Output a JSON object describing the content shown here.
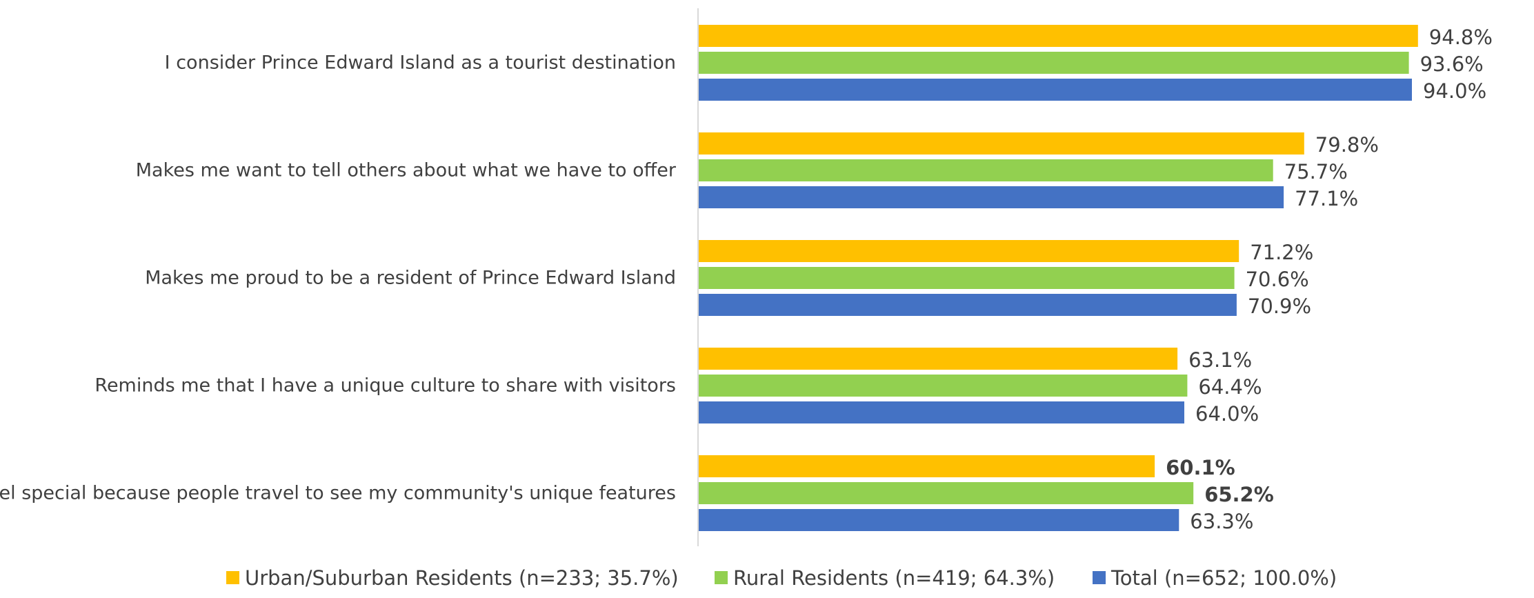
{
  "chart_data": {
    "type": "bar",
    "orientation": "horizontal",
    "categories": [
      "I consider Prince Edward Island as a tourist destination",
      "Makes me want to tell others about what we have to offer",
      "Makes me proud to be a resident of Prince Edward Island",
      "Reminds me that I have a unique culture to share with visitors",
      "I feel special because people travel to see my community's unique features"
    ],
    "series": [
      {
        "name": "Urban/Suburban Residents (n=233; 35.7%)",
        "color": "#FFC000",
        "values": [
          94.8,
          79.8,
          71.2,
          63.1,
          60.1
        ],
        "labels": [
          "94.8%",
          "79.8%",
          "71.2%",
          "63.1%",
          "60.1%"
        ]
      },
      {
        "name": "Rural Residents (n=419; 64.3%)",
        "color": "#92D050",
        "values": [
          93.6,
          75.7,
          70.6,
          64.4,
          65.2
        ],
        "labels": [
          "93.6%",
          "75.7%",
          "70.6%",
          "64.4%",
          "65.2%"
        ]
      },
      {
        "name": "Total (n=652; 100.0%)",
        "color": "#4472C4",
        "values": [
          94.0,
          77.1,
          70.9,
          64.0,
          63.3
        ],
        "labels": [
          "94.0%",
          "77.1%",
          "70.9%",
          "64.0%",
          "63.3%"
        ]
      }
    ],
    "highlights": [
      {
        "category_index": 4,
        "series_index": 0,
        "color": "#C00000",
        "bold": true
      },
      {
        "category_index": 4,
        "series_index": 1,
        "color": "#00B050",
        "bold": true
      }
    ],
    "label_color": "#404040",
    "axis_color": "#D9D9D9",
    "xlim": [
      0,
      100
    ],
    "grid": false,
    "legend_position": "bottom"
  }
}
